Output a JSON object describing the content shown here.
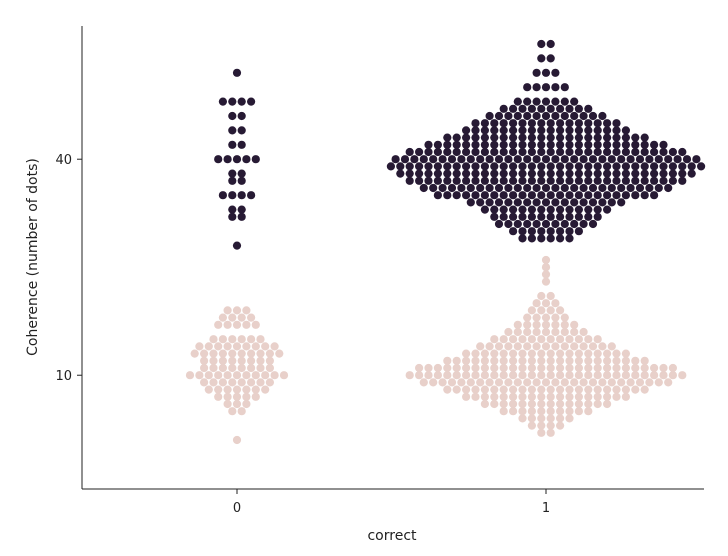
{
  "chart_data": {
    "type": "scatter",
    "subtype": "swarm",
    "title": "",
    "xlabel": "correct",
    "ylabel": "Coherence (number of dots)",
    "categories": [
      "0",
      "1"
    ],
    "yticks": [
      10,
      40
    ],
    "ylim": [
      -5.8,
      58.5
    ],
    "grid": false,
    "legend": "none",
    "colors": {
      "high": "#271a34",
      "low": "#e8d0ca"
    },
    "groups": [
      {
        "category": "0",
        "color_key": "high",
        "counts": [
          [
            28,
            1
          ],
          [
            32,
            2
          ],
          [
            33,
            2
          ],
          [
            35,
            4
          ],
          [
            37,
            2
          ],
          [
            38,
            2
          ],
          [
            40,
            5
          ],
          [
            42,
            2
          ],
          [
            44,
            2
          ],
          [
            46,
            2
          ],
          [
            48,
            4
          ],
          [
            52,
            1
          ]
        ]
      },
      {
        "category": "0",
        "color_key": "low",
        "counts": [
          [
            1,
            1
          ],
          [
            5,
            2
          ],
          [
            6,
            3
          ],
          [
            7,
            5
          ],
          [
            8,
            7
          ],
          [
            9,
            8
          ],
          [
            10,
            11
          ],
          [
            11,
            8
          ],
          [
            12,
            8
          ],
          [
            13,
            10
          ],
          [
            14,
            9
          ],
          [
            15,
            6
          ],
          [
            17,
            5
          ],
          [
            18,
            4
          ],
          [
            19,
            3
          ]
        ]
      },
      {
        "category": "1",
        "color_key": "high",
        "counts": [
          [
            29,
            6
          ],
          [
            30,
            8
          ],
          [
            31,
            11
          ],
          [
            32,
            12
          ],
          [
            33,
            14
          ],
          [
            34,
            17
          ],
          [
            35,
            24
          ],
          [
            36,
            27
          ],
          [
            37,
            30
          ],
          [
            38,
            32
          ],
          [
            39,
            34
          ],
          [
            40,
            33
          ],
          [
            41,
            30
          ],
          [
            42,
            26
          ],
          [
            43,
            22
          ],
          [
            44,
            18
          ],
          [
            45,
            16
          ],
          [
            46,
            13
          ],
          [
            47,
            10
          ],
          [
            48,
            7
          ],
          [
            50,
            5
          ],
          [
            52,
            3
          ],
          [
            54,
            2
          ],
          [
            56,
            2
          ]
        ]
      },
      {
        "category": "1",
        "color_key": "low",
        "counts": [
          [
            2,
            2
          ],
          [
            3,
            4
          ],
          [
            4,
            6
          ],
          [
            5,
            10
          ],
          [
            6,
            14
          ],
          [
            7,
            18
          ],
          [
            8,
            22
          ],
          [
            9,
            27
          ],
          [
            10,
            30
          ],
          [
            11,
            28
          ],
          [
            12,
            22
          ],
          [
            13,
            18
          ],
          [
            14,
            15
          ],
          [
            15,
            12
          ],
          [
            16,
            9
          ],
          [
            17,
            7
          ],
          [
            18,
            5
          ],
          [
            19,
            4
          ],
          [
            20,
            3
          ],
          [
            21,
            2
          ],
          [
            23,
            1
          ],
          [
            24,
            1
          ],
          [
            25,
            1
          ],
          [
            26,
            1
          ]
        ]
      }
    ]
  }
}
